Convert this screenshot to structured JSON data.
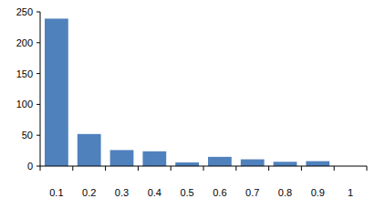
{
  "chart_data": {
    "type": "bar",
    "categories": [
      "0.1",
      "0.2",
      "0.3",
      "0.4",
      "0.5",
      "0.6",
      "0.7",
      "0.8",
      "0.9",
      "1"
    ],
    "values": [
      239,
      52,
      26,
      24,
      6,
      15,
      11,
      7,
      8,
      0
    ],
    "color": "#4f81bd",
    "ylim": [
      0,
      250
    ],
    "yticks": [
      0,
      50,
      100,
      150,
      200,
      250
    ],
    "grid": false
  }
}
